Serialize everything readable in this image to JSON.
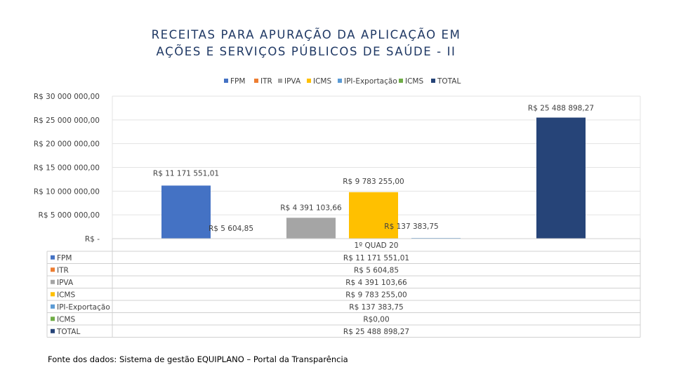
{
  "chart_data": {
    "type": "bar",
    "title_lines": [
      "RECEITAS PARA APURAÇÃO DA APLICAÇÃO EM",
      "AÇÕES E SERVIÇOS PÚBLICOS DE SAÚDE - II"
    ],
    "categories": [
      "1º QUAD 20"
    ],
    "series": [
      {
        "name": "FPM",
        "values": [
          11171551.01
        ],
        "label": "R$ 11 171 551,01",
        "color": "#4472c4"
      },
      {
        "name": "ITR",
        "values": [
          5604.85
        ],
        "label": "R$ 5 604,85",
        "color": "#ed7d31"
      },
      {
        "name": "IPVA",
        "values": [
          4391103.66
        ],
        "label": "R$ 4 391 103,66",
        "color": "#a5a5a5"
      },
      {
        "name": "ICMS",
        "values": [
          9783255.0
        ],
        "label": "R$ 9 783 255,00",
        "color": "#ffc000"
      },
      {
        "name": "IPI-Exportação",
        "values": [
          137383.75
        ],
        "label": "R$ 137 383,75",
        "color": "#5b9bd5"
      },
      {
        "name": "ICMS",
        "values": [
          0
        ],
        "label": "R$0,00",
        "color": "#70ad47"
      },
      {
        "name": "TOTAL",
        "values": [
          25488898.27
        ],
        "label": "R$ 25 488 898,27",
        "color": "#264478"
      }
    ],
    "ylim": [
      0,
      30000000
    ],
    "ytick_values": [
      0,
      5000000,
      10000000,
      15000000,
      20000000,
      25000000,
      30000000
    ],
    "ytick_labels": [
      "R$ -",
      "R$ 5 000 000,00",
      "R$ 10 000 000,00",
      "R$ 15 000 000,00",
      "R$ 20 000 000,00",
      "R$ 25 000 000,00",
      "R$ 30 000 000,00"
    ],
    "grid": true,
    "legend_position": "top",
    "data_table": true
  },
  "source_note": "Fonte dos dados: Sistema de gestão EQUIPLANO – Portal da Transparência"
}
